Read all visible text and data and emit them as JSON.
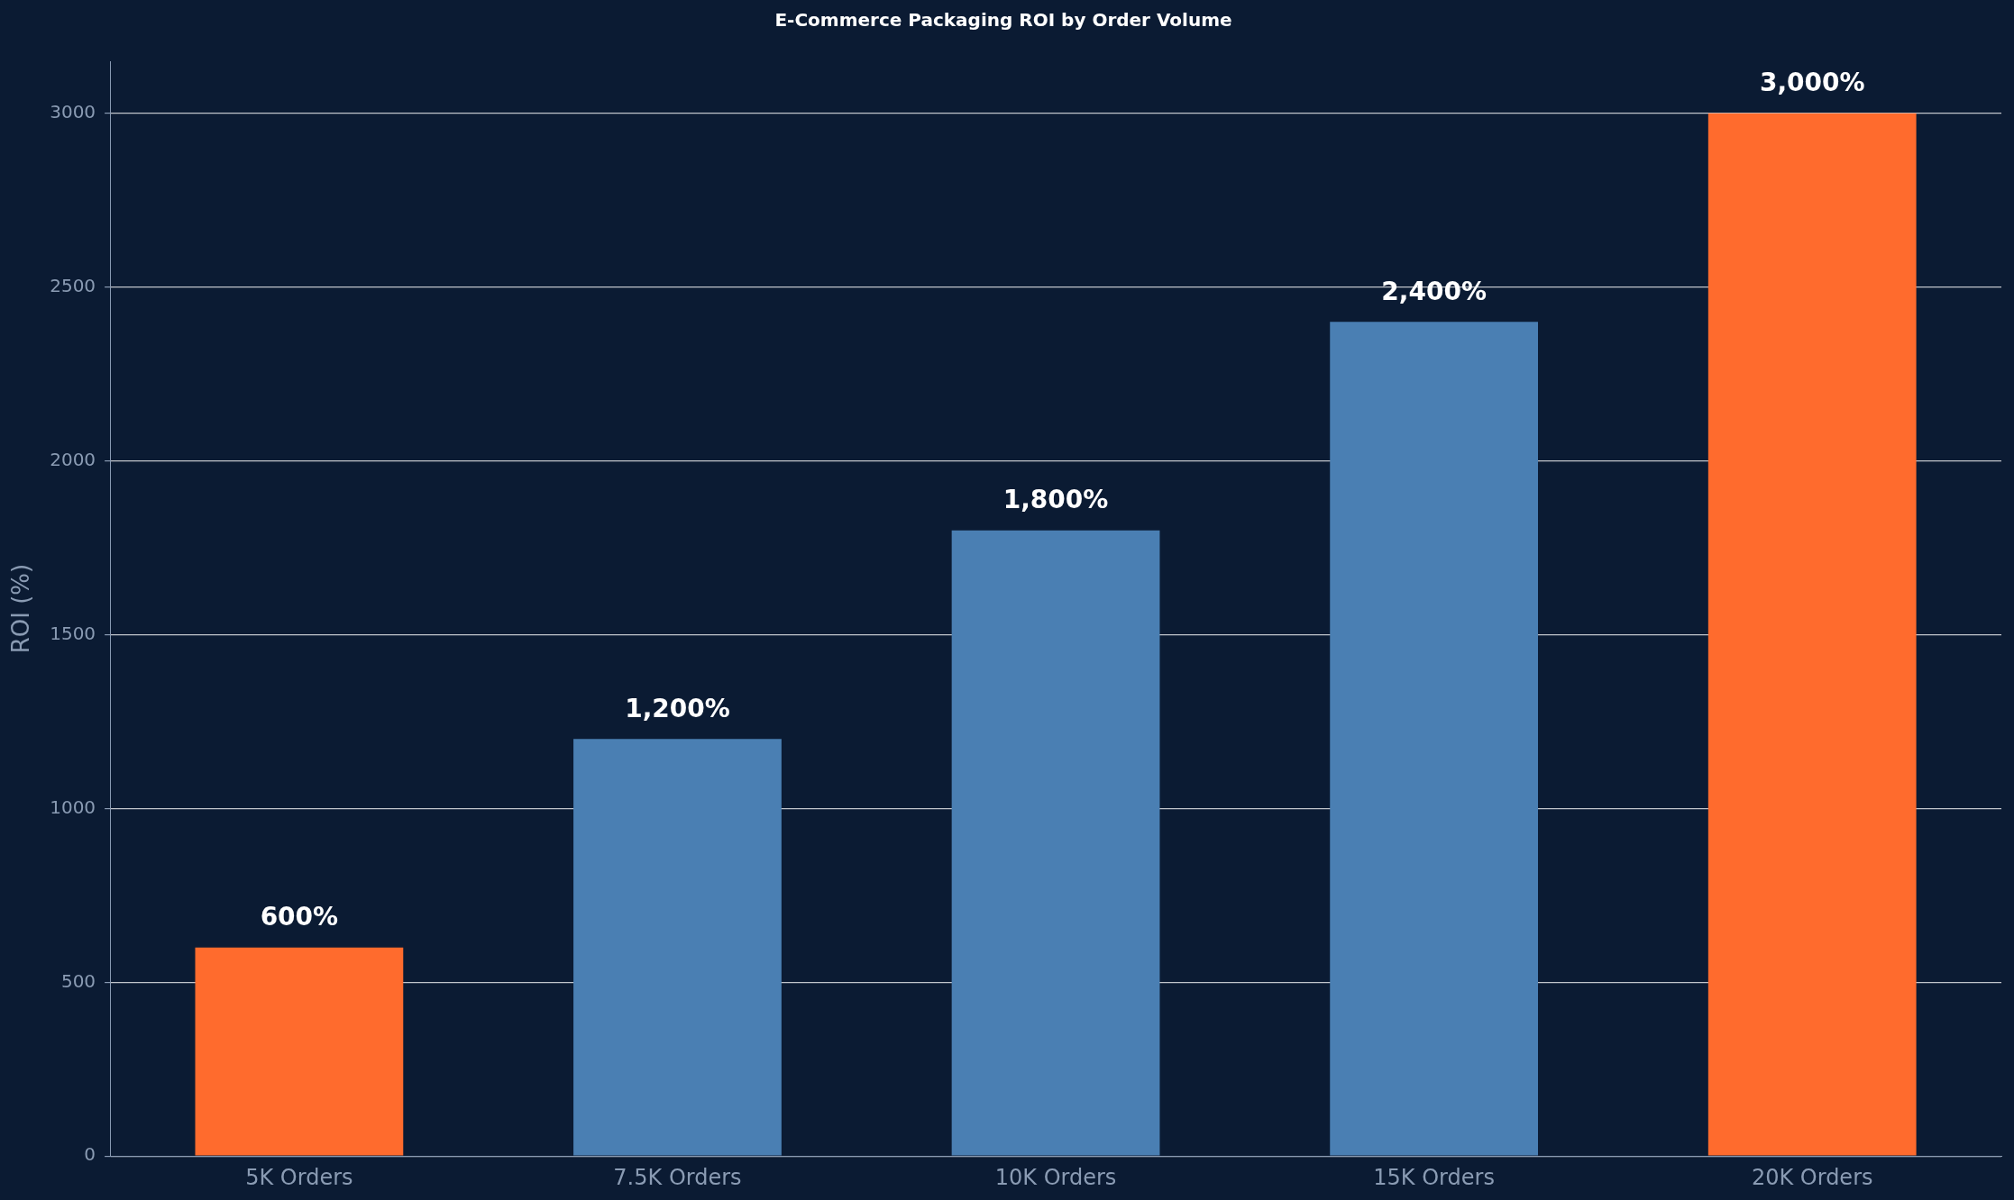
{
  "chart_data": {
    "type": "bar",
    "title": "E-Commerce Packaging ROI by Order Volume",
    "ylabel": "ROI (%)",
    "categories": [
      "5K Orders",
      "7.5K Orders",
      "10K Orders",
      "15K Orders",
      "20K Orders"
    ],
    "values": [
      600,
      1200,
      1800,
      2400,
      3000
    ],
    "colors": [
      "#ff6b2d",
      "#4a7fb3",
      "#4a7fb3",
      "#4a7fb3",
      "#ff6b2d"
    ],
    "value_labels": [
      "600%",
      "1,200%",
      "1,800%",
      "2,400%",
      "3,000%"
    ],
    "ylim": [
      0,
      3150
    ],
    "yticks": [
      0,
      500,
      1000,
      1500,
      2000,
      2500,
      3000
    ],
    "grid": "y",
    "legend": false
  }
}
